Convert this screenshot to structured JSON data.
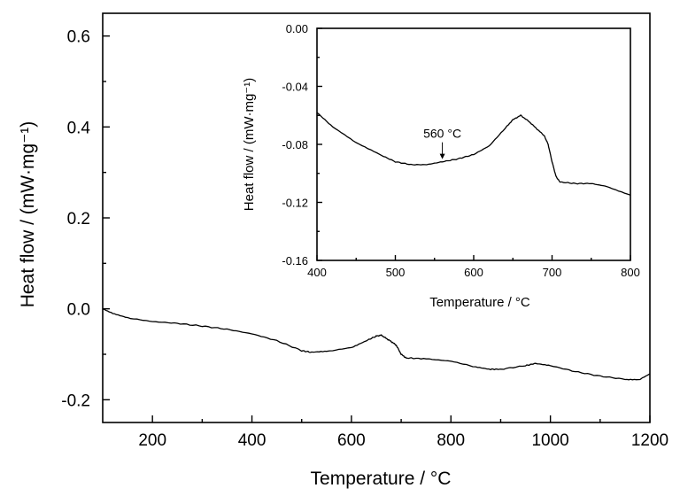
{
  "chart_data": [
    {
      "type": "line",
      "xlabel": "Temperature / °C",
      "ylabel": "Heat flow / (mW·mg⁻¹)",
      "xlim": [
        100,
        1200
      ],
      "ylim": [
        -0.25,
        0.65
      ],
      "xticks": [
        "200",
        "400",
        "600",
        "800",
        "1000",
        "1200"
      ],
      "yticks": [
        "-0.2",
        "0.0",
        "0.2",
        "0.4",
        "0.6"
      ],
      "grid": false,
      "series": [
        {
          "x": [
            100,
            120,
            150,
            200,
            250,
            300,
            350,
            400,
            450,
            500,
            520,
            550,
            600,
            630,
            650,
            660,
            670,
            680,
            690,
            700,
            710,
            750,
            800,
            850,
            880,
            900,
            950,
            970,
            1000,
            1050,
            1100,
            1150,
            1180,
            1200
          ],
          "y": [
            0.0,
            -0.01,
            -0.02,
            -0.028,
            -0.032,
            -0.038,
            -0.045,
            -0.055,
            -0.07,
            -0.092,
            -0.096,
            -0.094,
            -0.085,
            -0.07,
            -0.06,
            -0.058,
            -0.065,
            -0.072,
            -0.08,
            -0.1,
            -0.108,
            -0.11,
            -0.115,
            -0.128,
            -0.133,
            -0.133,
            -0.125,
            -0.12,
            -0.125,
            -0.138,
            -0.148,
            -0.155,
            -0.155,
            -0.143
          ]
        }
      ]
    },
    {
      "type": "line",
      "xlabel": "Temperature / °C",
      "ylabel": "Heat flow / (mW·mg⁻¹)",
      "xlim": [
        400,
        800
      ],
      "ylim": [
        -0.16,
        0.0
      ],
      "xticks": [
        "400",
        "500",
        "600",
        "700",
        "800"
      ],
      "yticks": [
        "0.00",
        "-0.04",
        "-0.08",
        "-0.12",
        "-0.16"
      ],
      "grid": false,
      "annotation": {
        "text": "560 °C",
        "x": 560
      },
      "series": [
        {
          "x": [
            400,
            420,
            450,
            480,
            500,
            520,
            540,
            560,
            580,
            600,
            620,
            640,
            650,
            660,
            670,
            680,
            690,
            695,
            700,
            705,
            710,
            730,
            750,
            770,
            800
          ],
          "y": [
            -0.058,
            -0.068,
            -0.079,
            -0.087,
            -0.092,
            -0.094,
            -0.094,
            -0.092,
            -0.09,
            -0.087,
            -0.081,
            -0.069,
            -0.063,
            -0.06,
            -0.064,
            -0.069,
            -0.074,
            -0.08,
            -0.092,
            -0.102,
            -0.106,
            -0.107,
            -0.107,
            -0.109,
            -0.115
          ]
        }
      ]
    }
  ]
}
